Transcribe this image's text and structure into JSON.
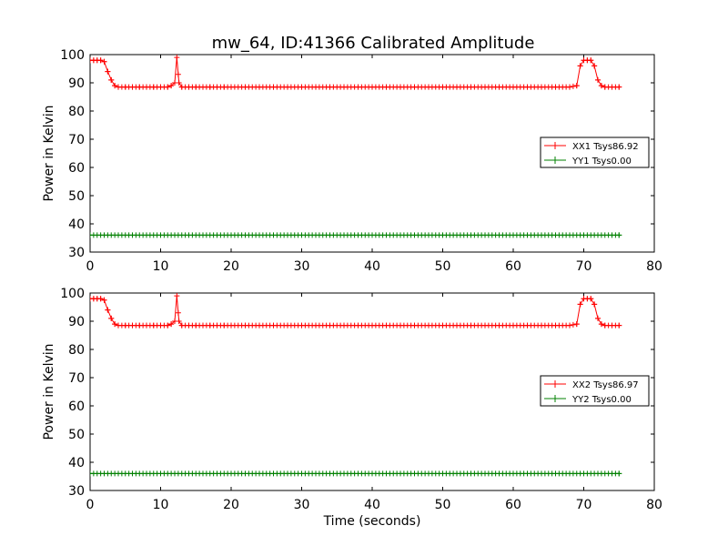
{
  "figure": {
    "title": "mw_64, ID:41366 Calibrated Amplitude"
  },
  "chart_data": [
    {
      "type": "line",
      "title": "mw_64, ID:41366 Calibrated Amplitude",
      "xlabel": "",
      "ylabel": "Power in Kelvin",
      "xlim": [
        0,
        80
      ],
      "ylim": [
        30,
        100
      ],
      "xticks": [
        "0",
        "10",
        "20",
        "30",
        "40",
        "50",
        "60",
        "70",
        "80"
      ],
      "yticks": [
        "30",
        "40",
        "50",
        "60",
        "70",
        "80",
        "90",
        "100"
      ],
      "grid": false,
      "legend_position": "center-right",
      "series": [
        {
          "name": "XX1 Tsys86.92",
          "color": "#ff0000",
          "marker": "plus",
          "x": [
            0,
            0.5,
            1,
            1.5,
            2,
            2.5,
            3,
            3.5,
            4,
            5,
            6,
            7,
            8,
            9,
            10,
            11,
            11.5,
            12,
            12.3,
            12.6,
            13,
            14,
            15,
            16,
            17,
            18,
            19,
            20,
            22,
            24,
            26,
            28,
            30,
            32,
            34,
            36,
            38,
            40,
            42,
            44,
            46,
            48,
            50,
            52,
            54,
            56,
            58,
            60,
            62,
            64,
            66,
            68,
            69,
            69.5,
            70,
            70.5,
            71,
            71.5,
            72,
            72.5,
            73,
            74,
            75
          ],
          "y": [
            98,
            98,
            98,
            98,
            97.5,
            94,
            91,
            89,
            88.5,
            88.5,
            88.5,
            88.5,
            88.5,
            88.5,
            88.5,
            88.5,
            89,
            90,
            99,
            90,
            88.5,
            88.5,
            88.5,
            88.5,
            88.5,
            88.5,
            88.5,
            88.5,
            88.5,
            88.5,
            88.5,
            88.5,
            88.5,
            88.5,
            88.5,
            88.5,
            88.5,
            88.5,
            88.5,
            88.5,
            88.5,
            88.5,
            88.5,
            88.5,
            88.5,
            88.5,
            88.5,
            88.5,
            88.5,
            88.5,
            88.5,
            88.5,
            89,
            96,
            98,
            98,
            98,
            96,
            91,
            89,
            88.5,
            88.5,
            88.5
          ]
        },
        {
          "name": "YY1 Tsys0.00",
          "color": "#008000",
          "marker": "plus",
          "x": [
            0,
            75
          ],
          "y": [
            36,
            36
          ]
        }
      ]
    },
    {
      "type": "line",
      "title": "",
      "xlabel": "Time (seconds)",
      "ylabel": "Power in Kelvin",
      "xlim": [
        0,
        80
      ],
      "ylim": [
        30,
        100
      ],
      "xticks": [
        "0",
        "10",
        "20",
        "30",
        "40",
        "50",
        "60",
        "70",
        "80"
      ],
      "yticks": [
        "30",
        "40",
        "50",
        "60",
        "70",
        "80",
        "90",
        "100"
      ],
      "grid": false,
      "legend_position": "center-right",
      "series": [
        {
          "name": "XX2 Tsys86.97",
          "color": "#ff0000",
          "marker": "plus",
          "x": [
            0,
            0.5,
            1,
            1.5,
            2,
            2.5,
            3,
            3.5,
            4,
            5,
            6,
            7,
            8,
            9,
            10,
            11,
            11.5,
            12,
            12.3,
            12.6,
            13,
            14,
            15,
            16,
            17,
            18,
            19,
            20,
            22,
            24,
            26,
            28,
            30,
            32,
            34,
            36,
            38,
            40,
            42,
            44,
            46,
            48,
            50,
            52,
            54,
            56,
            58,
            60,
            62,
            64,
            66,
            68,
            69,
            69.5,
            70,
            70.5,
            71,
            71.5,
            72,
            72.5,
            73,
            74,
            75
          ],
          "y": [
            98,
            98,
            98,
            98,
            97.5,
            94,
            91,
            89,
            88.5,
            88.5,
            88.5,
            88.5,
            88.5,
            88.5,
            88.5,
            88.5,
            89,
            90,
            99,
            90,
            88.5,
            88.5,
            88.5,
            88.5,
            88.5,
            88.5,
            88.5,
            88.5,
            88.5,
            88.5,
            88.5,
            88.5,
            88.5,
            88.5,
            88.5,
            88.5,
            88.5,
            88.5,
            88.5,
            88.5,
            88.5,
            88.5,
            88.5,
            88.5,
            88.5,
            88.5,
            88.5,
            88.5,
            88.5,
            88.5,
            88.5,
            88.5,
            89,
            96,
            98,
            98,
            98,
            96,
            91,
            89,
            88.5,
            88.5,
            88.5
          ]
        },
        {
          "name": "YY2 Tsys0.00",
          "color": "#008000",
          "marker": "plus",
          "x": [
            0,
            75
          ],
          "y": [
            36,
            36
          ]
        }
      ]
    }
  ]
}
